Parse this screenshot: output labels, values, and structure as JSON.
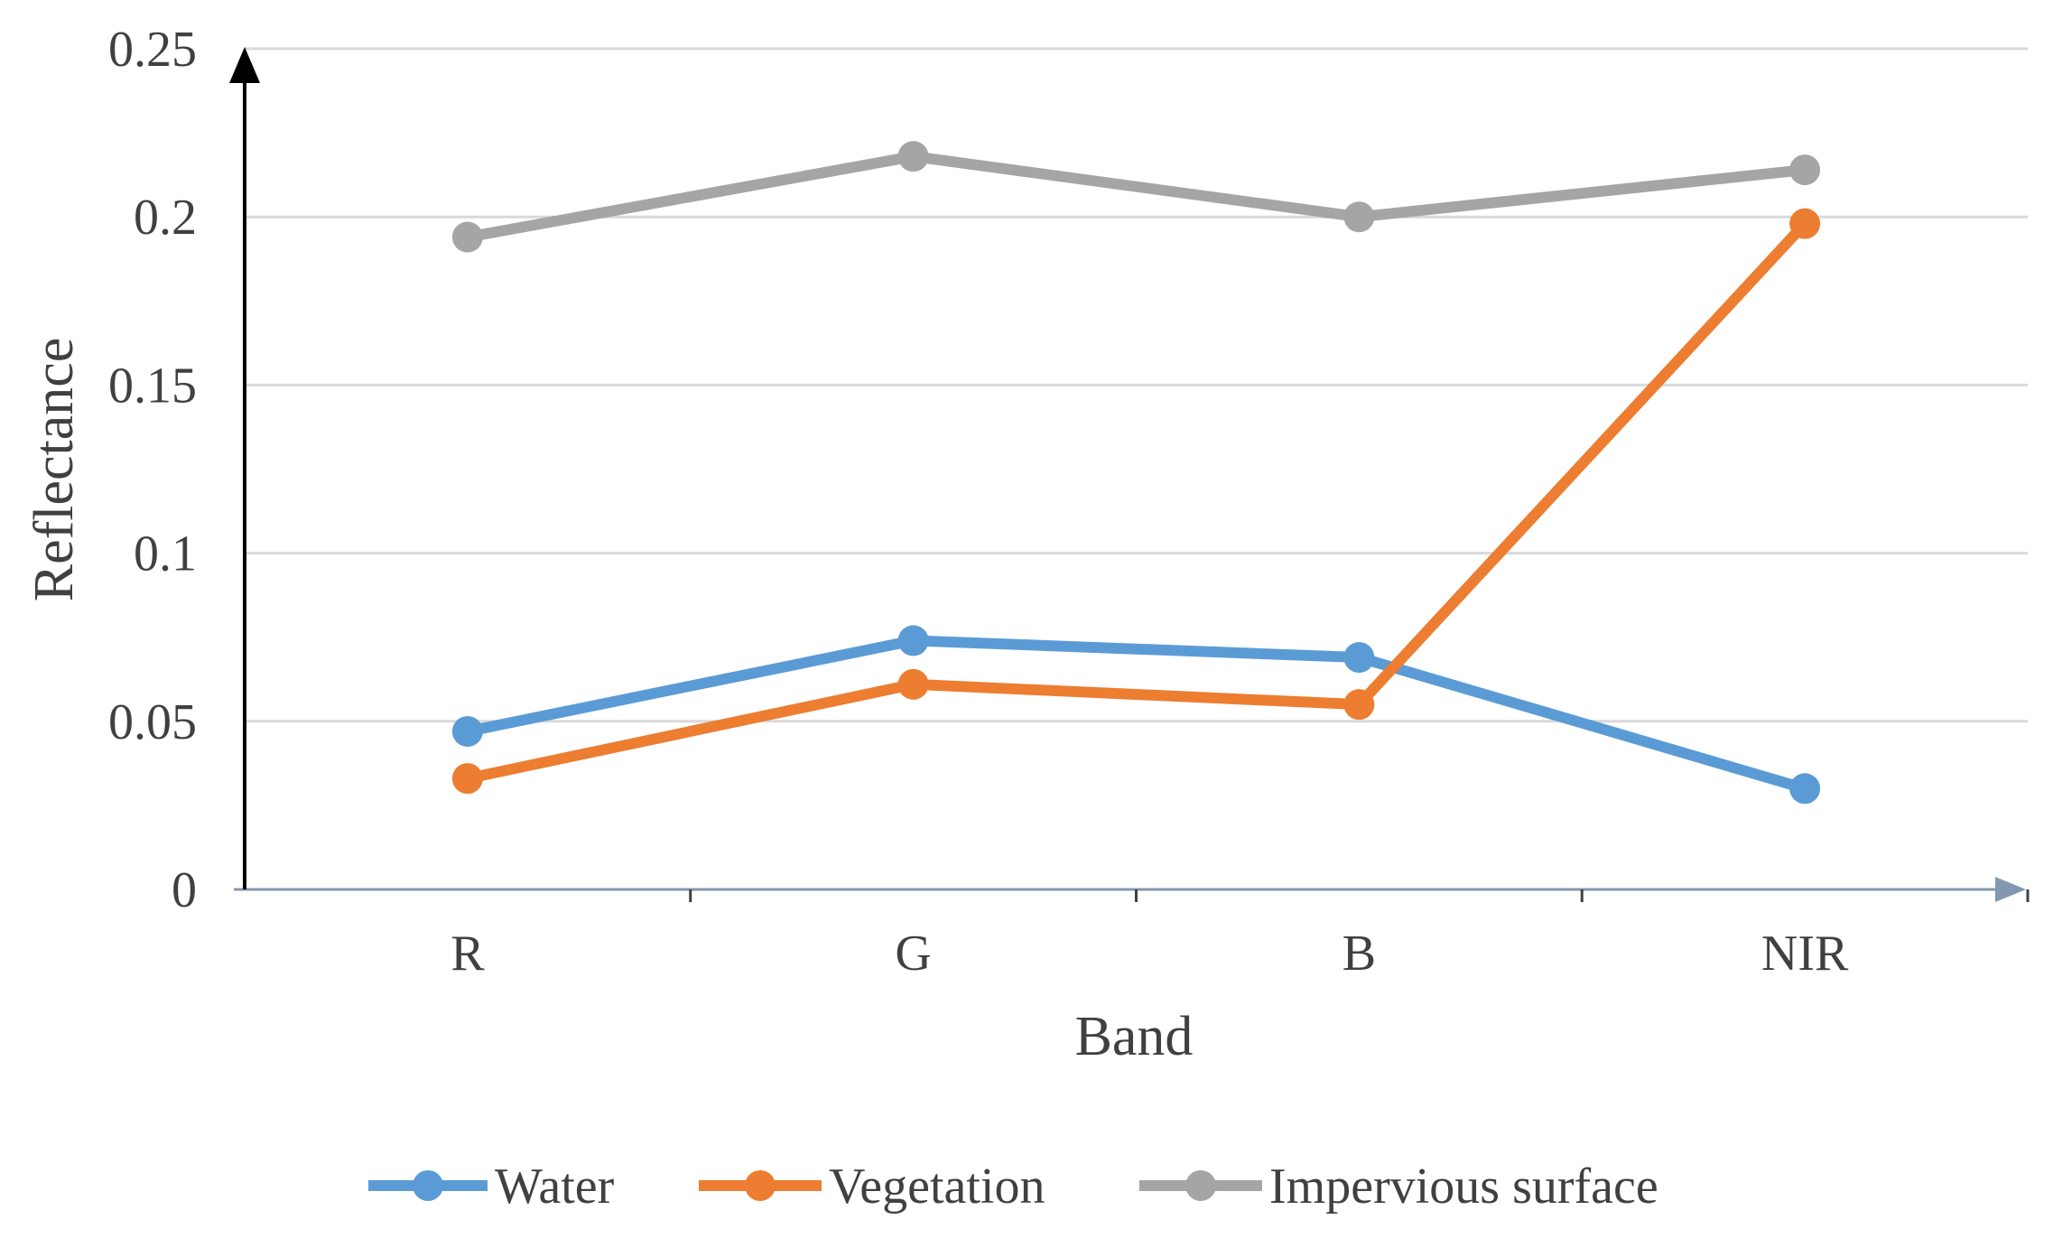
{
  "chart_data": {
    "type": "line",
    "title": "",
    "xlabel": "Band",
    "ylabel": "Reflectance",
    "categories": [
      "R",
      "G",
      "B",
      "NIR"
    ],
    "ylim": [
      0,
      0.25
    ],
    "yticks": [
      0,
      0.05,
      0.1,
      0.15,
      0.2,
      0.25
    ],
    "ytick_labels": [
      "0",
      "0.05",
      "0.1",
      "0.15",
      "0.2",
      "0.25"
    ],
    "grid": true,
    "legend_position": "bottom",
    "series": [
      {
        "name": "Water",
        "color": "#5b9bd5",
        "values": [
          0.047,
          0.074,
          0.069,
          0.03
        ]
      },
      {
        "name": "Vegetation",
        "color": "#ed7d31",
        "values": [
          0.033,
          0.061,
          0.055,
          0.198
        ]
      },
      {
        "name": "Impervious surface",
        "color": "#a5a5a5",
        "values": [
          0.194,
          0.218,
          0.2,
          0.214
        ]
      }
    ]
  }
}
